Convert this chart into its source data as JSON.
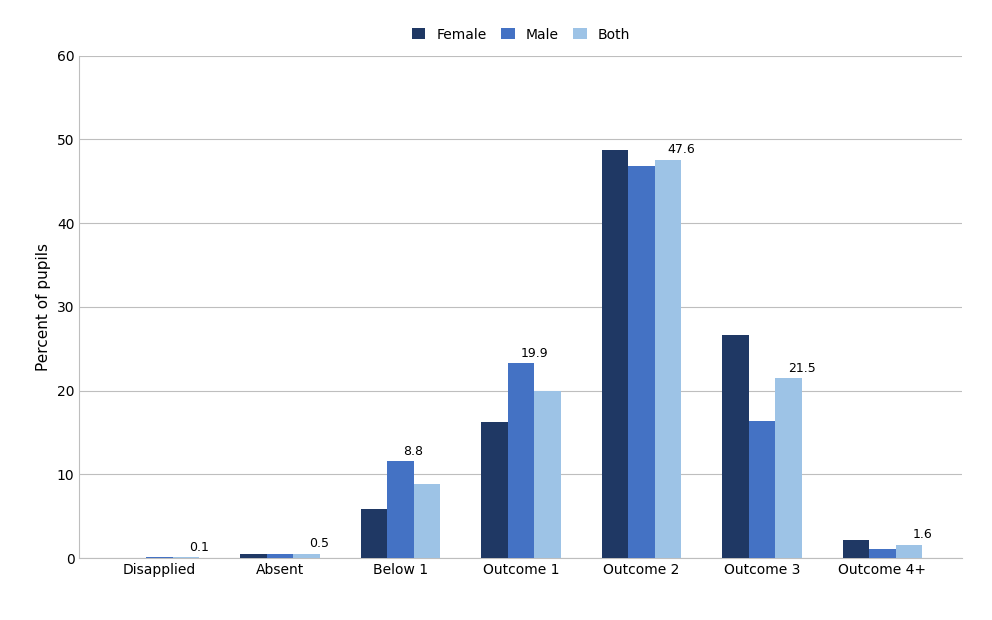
{
  "categories": [
    "Disapplied",
    "Absent",
    "Below 1",
    "Outcome 1",
    "Outcome 2",
    "Outcome 3",
    "Outcome 4+"
  ],
  "series": [
    {
      "label": "Female",
      "color": "#1F3864",
      "values": [
        0.05,
        0.5,
        5.8,
        16.2,
        48.8,
        26.7,
        2.1
      ]
    },
    {
      "label": "Male",
      "color": "#4472C4",
      "values": [
        0.1,
        0.5,
        11.6,
        23.3,
        46.8,
        16.4,
        1.1
      ]
    },
    {
      "label": "Both",
      "color": "#9DC3E6",
      "values": [
        0.1,
        0.5,
        8.8,
        19.9,
        47.6,
        21.5,
        1.6
      ]
    }
  ],
  "annot_values": [
    0.1,
    0.5,
    8.8,
    19.9,
    47.6,
    21.5,
    1.6
  ],
  "annot_series_idx": [
    2,
    2,
    1,
    1,
    2,
    2,
    2
  ],
  "ylabel": "Percent of pupils",
  "ylim": [
    0,
    60
  ],
  "yticks": [
    0,
    10,
    20,
    30,
    40,
    50,
    60
  ],
  "background_color": "#FFFFFF",
  "grid_color": "#BEBEBE",
  "bar_width": 0.22,
  "fontsize_labels": 10,
  "fontsize_annot": 9,
  "fontsize_legend": 10,
  "fontsize_ylabel": 11
}
